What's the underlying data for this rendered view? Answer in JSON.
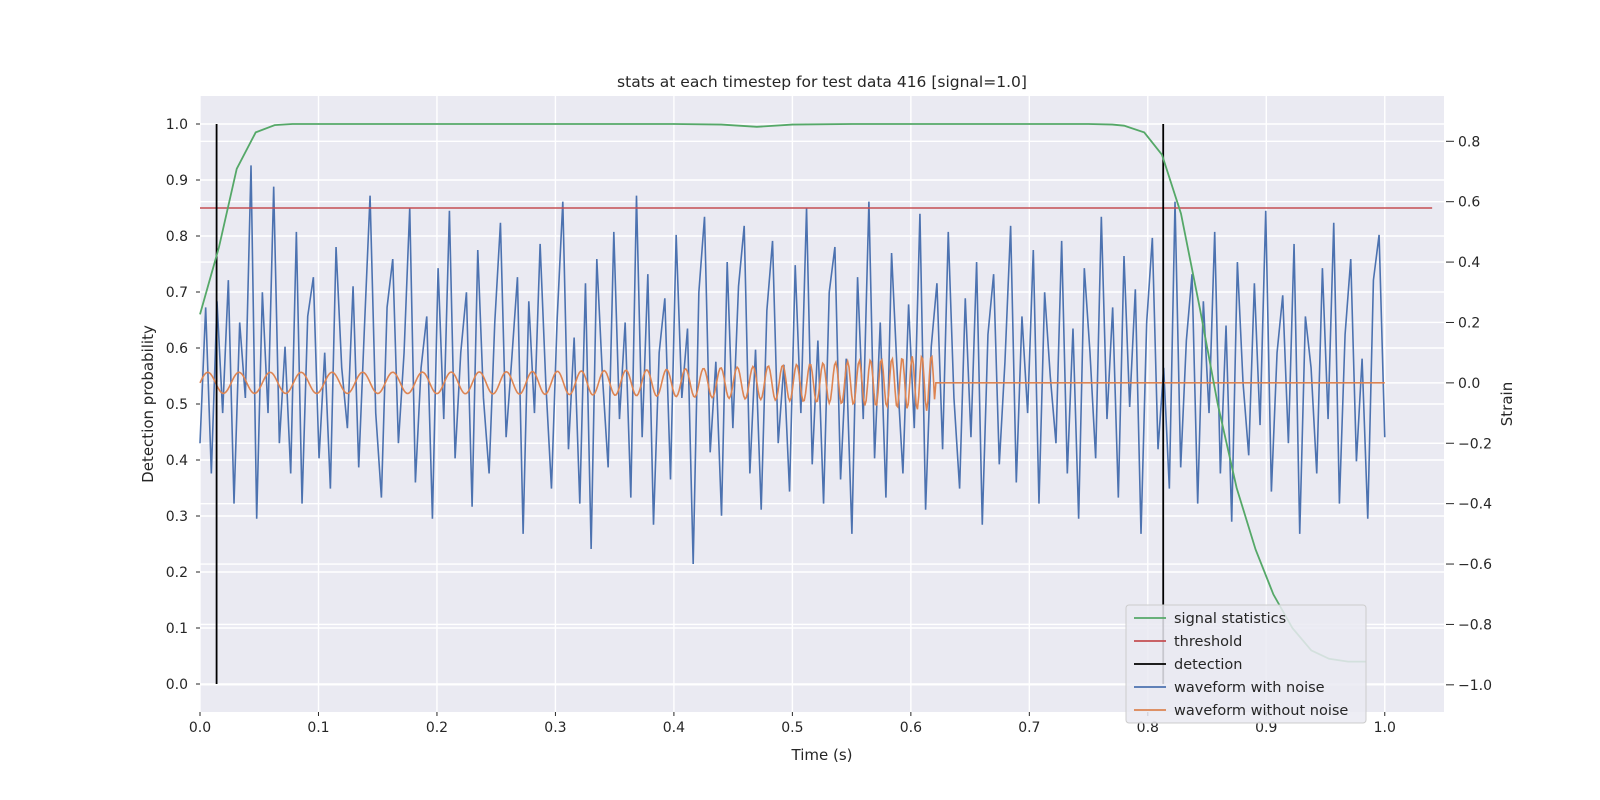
{
  "chart_data": {
    "type": "line",
    "title": "stats at each timestep for test data 416 [signal=1.0]",
    "xlabel": "Time (s)",
    "ylabel": "Detection probability",
    "y2label": "Strain",
    "xlim": [
      0.0,
      1.05
    ],
    "ylim": [
      -0.05,
      1.05
    ],
    "y2lim": [
      -1.09,
      0.95
    ],
    "xticks": [
      "0.0",
      "0.1",
      "0.2",
      "0.3",
      "0.4",
      "0.5",
      "0.6",
      "0.7",
      "0.8",
      "0.9",
      "1.0"
    ],
    "yticks": [
      "0.0",
      "0.1",
      "0.2",
      "0.3",
      "0.4",
      "0.5",
      "0.6",
      "0.7",
      "0.8",
      "0.9",
      "1.0"
    ],
    "y2ticks": [
      "−1.0",
      "−0.8",
      "−0.6",
      "−0.4",
      "−0.2",
      "0.0",
      "0.2",
      "0.4",
      "0.6",
      "0.8"
    ],
    "grid": true,
    "legend_position": "lower-right",
    "background_color": "#eaeaf2",
    "series": [
      {
        "name": "signal statistics",
        "axis": "left",
        "color": "#55a868",
        "x": [
          0.0,
          0.016,
          0.031,
          0.047,
          0.063,
          0.078,
          0.094,
          0.109,
          0.125,
          0.2,
          0.3,
          0.4,
          0.44,
          0.47,
          0.5,
          0.55,
          0.6,
          0.7,
          0.75,
          0.77,
          0.78,
          0.797,
          0.812,
          0.828,
          0.844,
          0.859,
          0.875,
          0.891,
          0.906,
          0.922,
          0.938,
          0.953,
          0.969,
          0.984
        ],
        "y": [
          0.66,
          0.78,
          0.92,
          0.985,
          0.998,
          1.0,
          1.0,
          1.0,
          1.0,
          1.0,
          1.0,
          1.0,
          0.999,
          0.995,
          0.999,
          1.0,
          1.0,
          1.0,
          1.0,
          0.999,
          0.997,
          0.985,
          0.945,
          0.84,
          0.67,
          0.5,
          0.35,
          0.24,
          0.16,
          0.1,
          0.06,
          0.045,
          0.04,
          0.04
        ]
      },
      {
        "name": "threshold",
        "axis": "left",
        "color": "#c44e52",
        "x": [
          0.0,
          1.04
        ],
        "y": [
          0.85,
          0.85
        ]
      },
      {
        "name": "detection",
        "axis": "left",
        "color": "#000000",
        "segments": [
          {
            "x": 0.014,
            "y0": 0.0,
            "y1": 1.0
          },
          {
            "x": 0.813,
            "y0": 0.0,
            "y1": 1.0
          }
        ]
      },
      {
        "name": "waveform with noise",
        "axis": "right",
        "color": "#4c72b0",
        "x_start": 0.0,
        "x_end": 1.0,
        "values": [
          -0.2,
          0.25,
          -0.3,
          0.27,
          -0.1,
          0.34,
          -0.4,
          0.2,
          -0.05,
          0.72,
          -0.45,
          0.3,
          -0.1,
          0.65,
          -0.2,
          0.12,
          -0.3,
          0.5,
          -0.4,
          0.22,
          0.35,
          -0.25,
          0.1,
          -0.35,
          0.45,
          0.05,
          -0.15,
          0.32,
          -0.28,
          0.18,
          0.62,
          -0.1,
          -0.38,
          0.25,
          0.41,
          -0.2,
          0.1,
          0.58,
          -0.33,
          0.05,
          0.22,
          -0.45,
          0.38,
          -0.12,
          0.57,
          -0.25,
          0.1,
          0.3,
          -0.41,
          0.44,
          -0.05,
          -0.3,
          0.2,
          0.53,
          -0.18,
          0.08,
          0.35,
          -0.5,
          0.27,
          -0.1,
          0.46,
          0.0,
          -0.35,
          0.21,
          0.6,
          -0.22,
          0.15,
          -0.4,
          0.33,
          -0.55,
          0.41,
          0.02,
          -0.28,
          0.5,
          -0.12,
          0.2,
          -0.38,
          0.62,
          -0.18,
          0.36,
          -0.47,
          0.1,
          0.28,
          -0.32,
          0.49,
          -0.05,
          0.18,
          -0.6,
          0.3,
          0.55,
          -0.23,
          0.07,
          -0.44,
          0.4,
          -0.15,
          0.32,
          0.52,
          -0.3,
          0.11,
          -0.42,
          0.24,
          0.47,
          -0.2,
          0.06,
          -0.36,
          0.39,
          -0.1,
          0.58,
          -0.27,
          0.14,
          -0.4,
          0.3,
          0.45,
          -0.32,
          0.08,
          -0.5,
          0.35,
          -0.12,
          0.6,
          -0.25,
          0.2,
          -0.38,
          0.43,
          0.03,
          -0.3,
          0.26,
          -0.15,
          0.56,
          -0.42,
          0.12,
          0.33,
          -0.22,
          0.5,
          -0.05,
          -0.35,
          0.28,
          -0.18,
          0.4,
          -0.47,
          0.16,
          0.36,
          -0.27,
          0.07,
          0.52,
          -0.33,
          0.22,
          -0.1,
          0.44,
          -0.4,
          0.3,
          0.02,
          -0.2,
          0.47,
          -0.3,
          0.18,
          -0.45,
          0.38,
          0.1,
          -0.25,
          0.55,
          -0.12,
          0.25,
          -0.38,
          0.42,
          -0.08,
          0.31,
          -0.5,
          0.2,
          0.48,
          -0.22,
          0.05,
          -0.35,
          0.6,
          -0.28,
          0.14,
          0.36,
          -0.4,
          0.27,
          -0.1,
          0.5,
          -0.3,
          0.19,
          -0.46,
          0.4,
          0.0,
          -0.24,
          0.33,
          -0.14,
          0.57,
          -0.36,
          0.1,
          0.29,
          -0.2,
          0.46,
          -0.5,
          0.22,
          0.05,
          -0.3,
          0.38,
          -0.12,
          0.53,
          -0.4,
          0.16,
          0.41,
          -0.26,
          0.08,
          -0.45,
          0.34,
          0.49,
          -0.18
        ]
      },
      {
        "name": "waveform without noise",
        "axis": "right",
        "color": "#dd8452",
        "x": [
          0.0,
          0.62,
          1.0
        ],
        "y": [
          0.0,
          0.0,
          0.0
        ]
      }
    ]
  }
}
